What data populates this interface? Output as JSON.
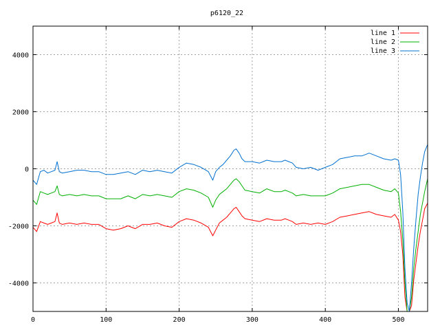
{
  "chart_data": {
    "type": "line",
    "title": "p6120_22",
    "xlabel": "",
    "ylabel": "",
    "xlim": [
      0,
      540
    ],
    "ylim": [
      -5000,
      5000
    ],
    "grid": true,
    "legend_position": "top-right",
    "x_ticks": [
      0,
      100,
      200,
      300,
      400,
      500
    ],
    "y_ticks": [
      -4000,
      -2000,
      0,
      2000,
      4000
    ],
    "x": [
      0,
      5,
      10,
      15,
      20,
      25,
      30,
      33,
      36,
      40,
      50,
      60,
      70,
      80,
      90,
      100,
      110,
      120,
      130,
      140,
      150,
      160,
      170,
      180,
      190,
      200,
      210,
      220,
      230,
      240,
      246,
      250,
      255,
      260,
      265,
      270,
      275,
      278,
      282,
      286,
      290,
      300,
      310,
      320,
      330,
      340,
      345,
      350,
      355,
      360,
      370,
      380,
      390,
      400,
      410,
      420,
      430,
      440,
      450,
      460,
      470,
      480,
      490,
      495,
      500,
      503,
      506,
      509,
      512,
      515,
      518,
      521,
      524,
      527,
      530,
      533,
      536,
      540
    ],
    "series": [
      {
        "name": "line 1",
        "color": "#ff0000",
        "values": [
          -2050,
          -2200,
          -1850,
          -1900,
          -1950,
          -1900,
          -1850,
          -1550,
          -1900,
          -1950,
          -1900,
          -1950,
          -1900,
          -1950,
          -1950,
          -2100,
          -2150,
          -2100,
          -2000,
          -2100,
          -1950,
          -1950,
          -1900,
          -2000,
          -2050,
          -1850,
          -1750,
          -1800,
          -1900,
          -2050,
          -2350,
          -2150,
          -1900,
          -1800,
          -1700,
          -1550,
          -1400,
          -1350,
          -1500,
          -1650,
          -1750,
          -1800,
          -1850,
          -1750,
          -1800,
          -1800,
          -1750,
          -1800,
          -1850,
          -1950,
          -1900,
          -1950,
          -1900,
          -1950,
          -1850,
          -1700,
          -1650,
          -1600,
          -1550,
          -1500,
          -1600,
          -1650,
          -1700,
          -1600,
          -1800,
          -2200,
          -3000,
          -4500,
          -5000,
          -5000,
          -4800,
          -3900,
          -3300,
          -2700,
          -2200,
          -1800,
          -1400,
          -1200
        ]
      },
      {
        "name": "line 2",
        "color": "#00b000",
        "values": [
          -1100,
          -1250,
          -800,
          -850,
          -900,
          -850,
          -800,
          -600,
          -900,
          -950,
          -900,
          -950,
          -900,
          -950,
          -950,
          -1050,
          -1050,
          -1050,
          -950,
          -1050,
          -900,
          -950,
          -900,
          -950,
          -1000,
          -800,
          -700,
          -750,
          -850,
          -1000,
          -1350,
          -1100,
          -900,
          -800,
          -700,
          -550,
          -400,
          -350,
          -450,
          -600,
          -750,
          -800,
          -850,
          -700,
          -800,
          -800,
          -750,
          -800,
          -850,
          -950,
          -900,
          -950,
          -950,
          -950,
          -850,
          -700,
          -650,
          -600,
          -550,
          -550,
          -650,
          -750,
          -800,
          -700,
          -850,
          -1500,
          -2500,
          -4000,
          -5000,
          -5000,
          -4500,
          -3500,
          -2800,
          -2200,
          -1600,
          -1200,
          -800,
          -350
        ]
      },
      {
        "name": "line 3",
        "color": "#0070d0",
        "values": [
          -400,
          -550,
          -100,
          -50,
          -150,
          -100,
          -50,
          250,
          -100,
          -150,
          -100,
          -50,
          -50,
          -100,
          -100,
          -200,
          -200,
          -150,
          -100,
          -200,
          -50,
          -100,
          -50,
          -100,
          -150,
          50,
          200,
          150,
          50,
          -100,
          -400,
          -100,
          50,
          150,
          300,
          450,
          650,
          700,
          550,
          350,
          250,
          250,
          200,
          300,
          250,
          250,
          300,
          250,
          200,
          50,
          0,
          50,
          -50,
          50,
          150,
          350,
          400,
          450,
          450,
          550,
          450,
          350,
          300,
          350,
          300,
          -200,
          -1500,
          -3500,
          -4700,
          -5000,
          -4000,
          -2800,
          -1800,
          -900,
          -300,
          200,
          600,
          850
        ]
      }
    ]
  }
}
